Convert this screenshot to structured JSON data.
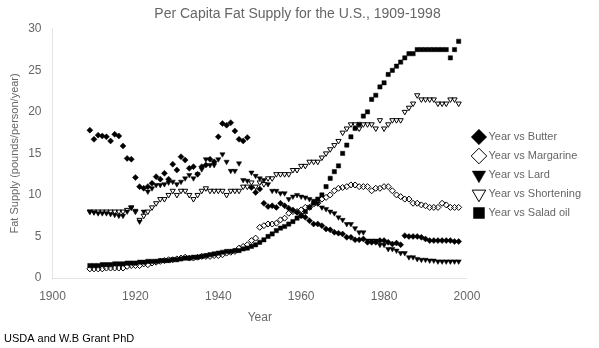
{
  "chart_data": {
    "type": "scatter",
    "title": "Per Capita Fat Supply for the U.S., 1909-1998",
    "xlabel": "Year",
    "ylabel": "Fat Supply (pounds/person/year)",
    "caption": "USDA and W.B Grant PhD",
    "xlim": [
      1900,
      2000
    ],
    "ylim": [
      0,
      30
    ],
    "xticks": [
      1900,
      1920,
      1940,
      1960,
      1980,
      2000
    ],
    "yticks": [
      0,
      5,
      10,
      15,
      20,
      25,
      30
    ],
    "grid": false,
    "legend": "right",
    "x": [
      1909,
      1910,
      1911,
      1912,
      1913,
      1914,
      1915,
      1916,
      1917,
      1918,
      1919,
      1920,
      1921,
      1922,
      1923,
      1924,
      1925,
      1926,
      1927,
      1928,
      1929,
      1930,
      1931,
      1932,
      1933,
      1934,
      1935,
      1936,
      1937,
      1938,
      1939,
      1940,
      1941,
      1942,
      1943,
      1944,
      1945,
      1946,
      1947,
      1948,
      1949,
      1950,
      1951,
      1952,
      1953,
      1954,
      1955,
      1956,
      1957,
      1958,
      1959,
      1960,
      1961,
      1962,
      1963,
      1964,
      1965,
      1966,
      1967,
      1968,
      1969,
      1970,
      1971,
      1972,
      1973,
      1974,
      1975,
      1976,
      1977,
      1978,
      1979,
      1980,
      1981,
      1982,
      1983,
      1984,
      1985,
      1986,
      1987,
      1988,
      1989,
      1990,
      1991,
      1992,
      1993,
      1994,
      1995,
      1996,
      1997,
      1998
    ],
    "series": [
      {
        "name": "Year vs Butter",
        "color": "#000000",
        "marker": "diamond",
        "values": [
          17.8,
          16.7,
          17.2,
          17.1,
          17.0,
          16.5,
          17.3,
          17.1,
          15.9,
          14.4,
          14.3,
          12.1,
          11.0,
          10.8,
          11.0,
          11.4,
          12.2,
          11.9,
          12.6,
          11.9,
          13.7,
          13.0,
          14.6,
          14.2,
          13.2,
          13.4,
          12.5,
          13.4,
          13.6,
          14.3,
          14.0,
          17.0,
          18.6,
          18.4,
          18.7,
          17.7,
          16.7,
          16.5,
          16.9,
          10.9,
          10.3,
          10.7,
          9.0,
          8.6,
          8.7,
          8.5,
          9.0,
          8.7,
          8.4,
          8.2,
          7.9,
          7.5,
          7.3,
          6.9,
          6.5,
          6.5,
          6.3,
          5.9,
          5.8,
          5.5,
          5.4,
          5.3,
          4.9,
          4.9,
          4.6,
          4.6,
          4.7,
          4.3,
          4.3,
          4.3,
          4.5,
          4.5,
          4.3,
          4.1,
          4.2,
          4.0,
          5.1,
          5.0,
          5.0,
          5.0,
          4.9,
          4.7,
          4.5,
          4.5,
          4.5,
          4.5,
          4.5,
          4.5,
          4.4,
          4.4
        ]
      },
      {
        "name": "Year vs Margarine",
        "color": "#000000",
        "marker": "open_diamond",
        "values": [
          1.1,
          1.1,
          1.1,
          1.1,
          1.2,
          1.2,
          1.2,
          1.2,
          1.2,
          1.4,
          1.5,
          1.5,
          1.5,
          1.7,
          1.6,
          1.8,
          1.9,
          2.0,
          2.1,
          2.2,
          2.2,
          2.3,
          2.4,
          2.5,
          2.4,
          2.4,
          2.5,
          2.6,
          2.6,
          2.6,
          2.7,
          2.7,
          2.8,
          3.0,
          3.1,
          3.2,
          3.6,
          3.8,
          4.0,
          4.5,
          4.8,
          6.1,
          6.3,
          6.5,
          6.5,
          6.6,
          7.0,
          7.2,
          7.8,
          8.0,
          8.0,
          8.2,
          8.5,
          8.5,
          8.9,
          9.0,
          9.5,
          9.7,
          10.0,
          10.5,
          10.8,
          10.9,
          11.0,
          11.2,
          11.2,
          11.0,
          11.0,
          11.0,
          10.5,
          10.8,
          10.8,
          11.0,
          11.0,
          10.5,
          10.0,
          9.8,
          9.5,
          9.5,
          9.0,
          9.0,
          8.8,
          8.7,
          8.5,
          8.5,
          8.5,
          9.0,
          8.8,
          8.5,
          8.5,
          8.5
        ]
      },
      {
        "name": "Year vs Lard",
        "color": "#000000",
        "marker": "triangle_down",
        "values": [
          8.0,
          7.9,
          7.8,
          7.8,
          7.8,
          7.7,
          7.6,
          7.5,
          7.5,
          8.0,
          8.5,
          8.1,
          6.8,
          8.0,
          10.4,
          10.8,
          11.2,
          11.2,
          11.3,
          11.5,
          11.6,
          11.3,
          11.6,
          12.0,
          12.4,
          12.0,
          12.5,
          13.1,
          14.3,
          13.6,
          13.6,
          14.3,
          14.9,
          14.0,
          12.9,
          12.9,
          13.8,
          11.8,
          11.7,
          12.7,
          12.3,
          12.0,
          11.8,
          11.3,
          10.5,
          10.5,
          10.2,
          10.2,
          9.5,
          9.8,
          10.0,
          9.8,
          9.7,
          9.5,
          9.3,
          9.0,
          8.5,
          8.3,
          8.0,
          7.8,
          7.3,
          7.0,
          6.5,
          6.5,
          6.0,
          5.5,
          5.5,
          4.5,
          4.5,
          4.5,
          4.0,
          4.0,
          3.5,
          3.5,
          3.3,
          3.0,
          3.0,
          2.5,
          2.5,
          2.3,
          2.2,
          2.2,
          2.1,
          2.1,
          2.0,
          2.0,
          2.0,
          2.0,
          2.0,
          2.0
        ]
      },
      {
        "name": "Year vs Shortening",
        "color": "#000000",
        "marker": "open_triangle_down",
        "values": [
          8.0,
          8.0,
          8.0,
          8.0,
          8.0,
          8.0,
          8.0,
          8.0,
          8.0,
          8.2,
          8.5,
          8.0,
          7.0,
          7.5,
          8.0,
          8.5,
          9.0,
          9.5,
          9.5,
          10.0,
          10.5,
          10.0,
          10.5,
          10.5,
          10.0,
          9.5,
          10.0,
          10.5,
          10.8,
          10.5,
          10.5,
          10.5,
          10.5,
          10.0,
          10.5,
          10.5,
          10.5,
          11.0,
          11.0,
          11.5,
          11.0,
          11.5,
          11.3,
          12.0,
          12.0,
          12.5,
          12.5,
          12.5,
          12.5,
          13.0,
          13.0,
          13.5,
          13.5,
          14.0,
          14.0,
          14.0,
          14.5,
          15.0,
          15.5,
          16.0,
          16.5,
          17.5,
          18.0,
          18.5,
          18.5,
          18.0,
          18.5,
          18.5,
          18.5,
          18.0,
          19.0,
          18.0,
          18.5,
          19.0,
          19.0,
          19.0,
          20.0,
          20.5,
          21.0,
          22.0,
          21.5,
          21.5,
          21.5,
          21.5,
          21.0,
          21.0,
          21.0,
          21.5,
          21.5,
          21.0
        ]
      },
      {
        "name": "Year vs Salad oil",
        "color": "#000000",
        "marker": "square",
        "values": [
          1.5,
          1.5,
          1.5,
          1.6,
          1.6,
          1.6,
          1.7,
          1.7,
          1.7,
          1.8,
          1.8,
          1.8,
          1.9,
          1.9,
          2.0,
          2.0,
          2.0,
          2.1,
          2.1,
          2.1,
          2.2,
          2.2,
          2.3,
          2.4,
          2.4,
          2.5,
          2.5,
          2.6,
          2.7,
          2.8,
          2.9,
          3.0,
          3.1,
          3.2,
          3.2,
          3.3,
          3.3,
          3.5,
          3.6,
          3.8,
          4.0,
          4.3,
          4.6,
          5.0,
          5.3,
          5.7,
          6.0,
          6.2,
          6.5,
          6.8,
          7.2,
          7.5,
          8.0,
          8.5,
          9.0,
          9.5,
          10.0,
          11.0,
          12.0,
          12.8,
          13.5,
          15.0,
          16.0,
          17.0,
          18.0,
          18.5,
          19.5,
          20.0,
          21.5,
          22.0,
          23.0,
          23.5,
          24.5,
          25.0,
          25.5,
          26.0,
          26.5,
          27.0,
          27.0,
          27.5,
          27.5,
          27.5,
          27.5,
          27.5,
          27.5,
          27.5,
          27.5,
          26.5,
          27.5,
          28.5
        ]
      }
    ]
  }
}
